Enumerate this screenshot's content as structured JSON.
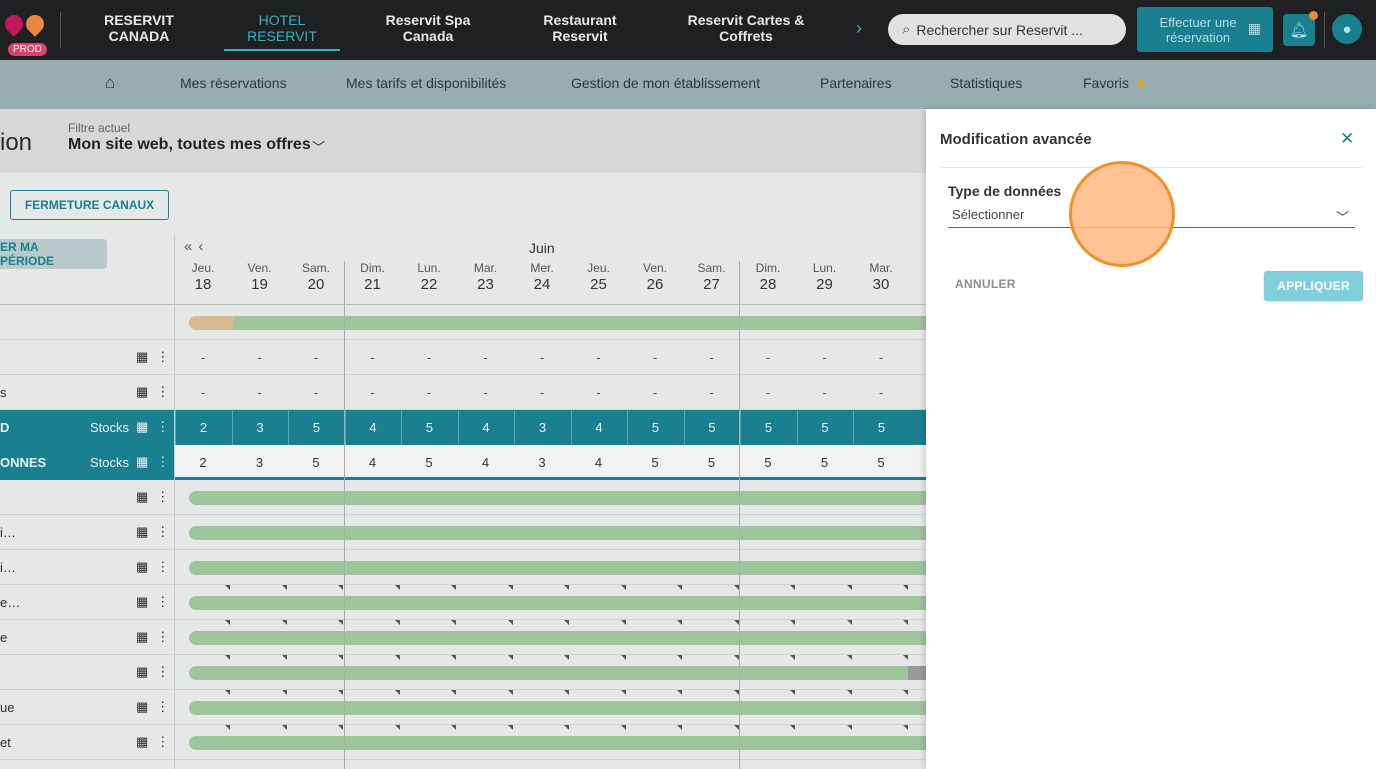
{
  "topbar": {
    "prod_badge": "PROD",
    "tabs": [
      {
        "label": "RESERVIT\nCANADA"
      },
      {
        "label": "HOTEL\nRESERVIT"
      },
      {
        "label": "Reservit Spa\nCanada"
      },
      {
        "label": "Restaurant\nReservit"
      },
      {
        "label": "Reservit Cartes &\nCoffrets"
      }
    ],
    "search_placeholder": "Rechercher sur Reservit ...",
    "book_button": "Effectuer une réservation",
    "icons": [
      "chevron-right-icon",
      "search-icon",
      "calendar-icon",
      "bell-icon",
      "user-icon"
    ],
    "accent_color": "#1a7f8f",
    "notification_dot_color": "#e6893b"
  },
  "subnav": {
    "items": [
      {
        "label": "Mes réservations"
      },
      {
        "label": "Mes tarifs et disponibilités"
      },
      {
        "label": "Gestion de mon établissement"
      },
      {
        "label": "Partenaires"
      },
      {
        "label": "Statistiques"
      },
      {
        "label": "Favoris"
      }
    ]
  },
  "filter": {
    "title_partial": "ion",
    "label": "Filtre actuel",
    "value": "Mon site web, toutes mes offres"
  },
  "toolbar": {
    "close_channels": "FERMETURE CANAUX",
    "period_button": "ER MA PÉRIODE"
  },
  "calendar": {
    "month": "Juin",
    "days": [
      {
        "name": "Jeu.",
        "num": "18"
      },
      {
        "name": "Ven.",
        "num": "19"
      },
      {
        "name": "Sam.",
        "num": "20"
      },
      {
        "name": "Dim.",
        "num": "21"
      },
      {
        "name": "Lun.",
        "num": "22"
      },
      {
        "name": "Mar.",
        "num": "23"
      },
      {
        "name": "Mer.",
        "num": "24"
      },
      {
        "name": "Jeu.",
        "num": "25"
      },
      {
        "name": "Ven.",
        "num": "26"
      },
      {
        "name": "Sam.",
        "num": "27"
      },
      {
        "name": "Dim.",
        "num": "28"
      },
      {
        "name": "Lun.",
        "num": "29"
      },
      {
        "name": "Mar.",
        "num": "30"
      }
    ],
    "rows": {
      "dash_row_1": "",
      "dash_row_2": "s",
      "stocks_label": "Stocks",
      "teal_row_1": "D",
      "teal_row_2": "ONNES",
      "stocks_values_1": [
        "2",
        "3",
        "5",
        "4",
        "5",
        "4",
        "3",
        "4",
        "5",
        "5",
        "5",
        "5",
        "5"
      ],
      "stocks_values_2": [
        "2",
        "3",
        "5",
        "4",
        "5",
        "4",
        "3",
        "4",
        "5",
        "5",
        "5",
        "5",
        "5"
      ],
      "rate_rows": [
        "",
        "i…",
        "i…",
        "e…",
        "e",
        "",
        "ue",
        "et"
      ]
    }
  },
  "panel": {
    "title": "Modification avancée",
    "field_label": "Type de données",
    "select_value": "Sélectionner",
    "cancel": "ANNULER",
    "apply": "APPLIQUER"
  }
}
